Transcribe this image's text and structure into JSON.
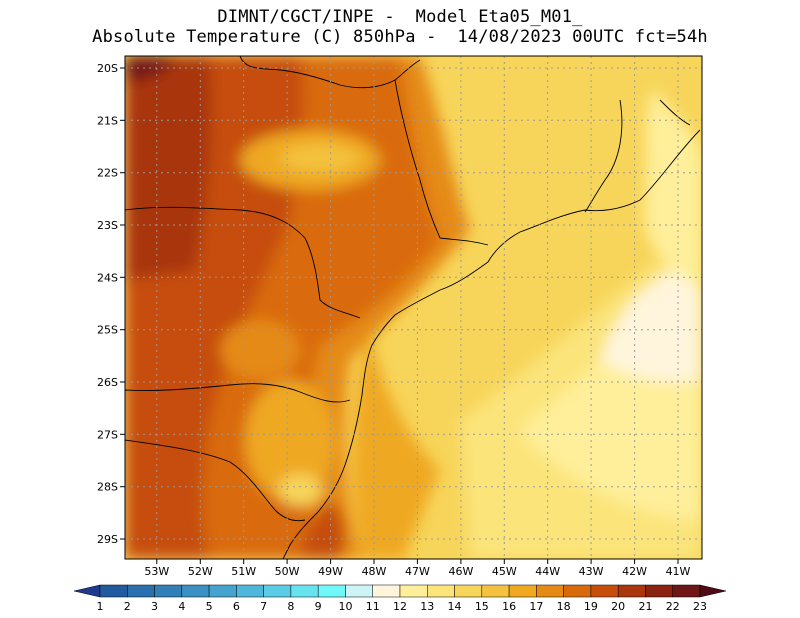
{
  "title": {
    "line1": "DIMNT/CGCT/INPE -  Model Eta05_M01_",
    "line2": "Absolute Temperature (C) 850hPa -  14/08/2023 00UTC fct=54h"
  },
  "map": {
    "lat_labels": [
      "20S",
      "21S",
      "22S",
      "23S",
      "24S",
      "25S",
      "26S",
      "27S",
      "28S",
      "29S"
    ],
    "lon_labels": [
      "53W",
      "52W",
      "51W",
      "50W",
      "49W",
      "48W",
      "47W",
      "46W",
      "45W",
      "44W",
      "43W",
      "42W",
      "41W"
    ]
  },
  "colorbar": {
    "labels": [
      "1",
      "2",
      "3",
      "4",
      "5",
      "6",
      "7",
      "8",
      "9",
      "10",
      "11",
      "12",
      "13",
      "14",
      "15",
      "16",
      "17",
      "18",
      "19",
      "20",
      "21",
      "22",
      "23"
    ],
    "colors": [
      "#1d3a8f",
      "#215a9e",
      "#2a6fae",
      "#337fb8",
      "#3b90c4",
      "#45a3cf",
      "#50b7dc",
      "#5bcce6",
      "#67e3ef",
      "#70f8f8",
      "#cdf3f6",
      "#fff5dc",
      "#ffef9a",
      "#fbe47a",
      "#f7d55a",
      "#f4c23e",
      "#efa820",
      "#e58a14",
      "#d96a0c",
      "#c64e0a",
      "#a9360c",
      "#8a2410",
      "#6f1616",
      "#500a14"
    ]
  }
}
